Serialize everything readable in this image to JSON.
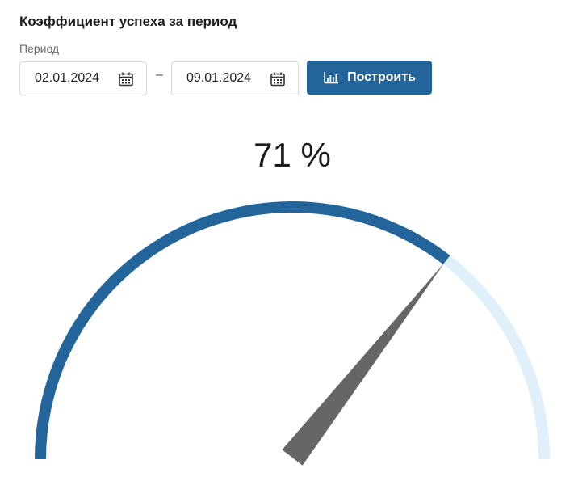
{
  "widget": {
    "title": "Коэффициент успеха за период",
    "period_label": "Период",
    "date_from": "02.01.2024",
    "date_separator": "–",
    "date_to": "09.01.2024",
    "build_button_label": "Построить",
    "icons": {
      "date_from": "calendar-icon",
      "date_to": "calendar-icon",
      "build_button": "bar-chart-icon"
    }
  },
  "gauge": {
    "value_text": "71 %",
    "value": 71,
    "min": 0,
    "max": 100,
    "filled_color": "#23659b",
    "track_color": "#dff0fb",
    "needle_color": "#666666"
  }
}
